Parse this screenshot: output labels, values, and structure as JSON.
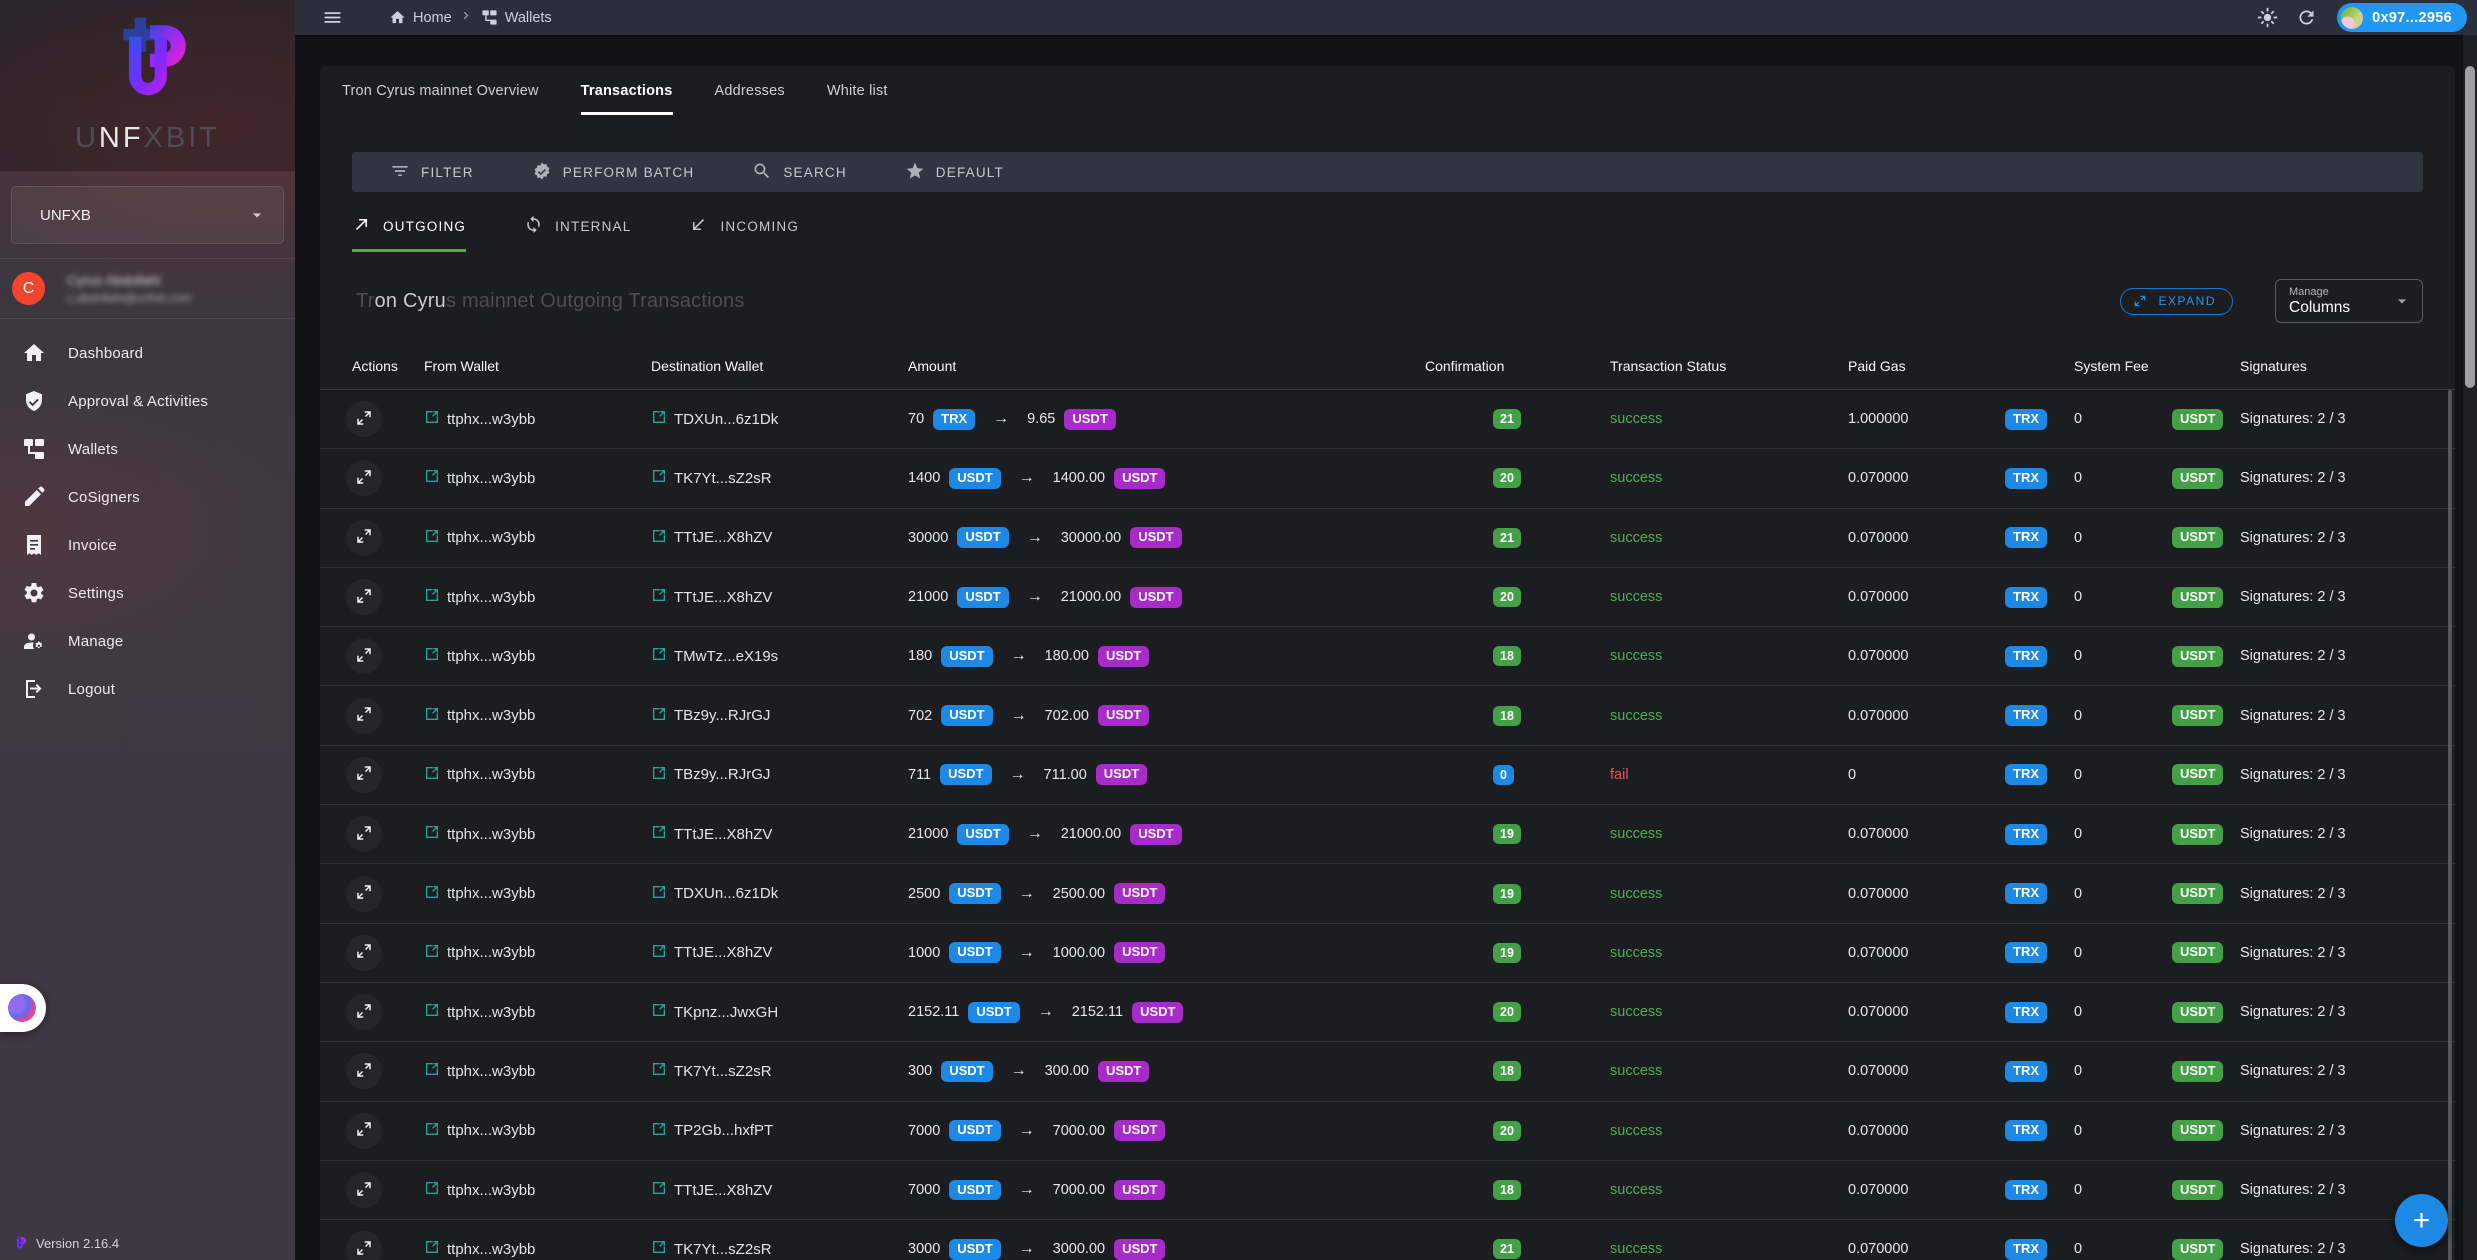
{
  "brand": {
    "logo_pre": "U",
    "logo_hl": "NF",
    "logo_post": "XBIT"
  },
  "sidebar": {
    "workspace": "UNFXB",
    "user": {
      "initial": "C",
      "name": "Cyrus Abdollahi",
      "email": "c.abdollahi@unfxb.com"
    },
    "items": [
      {
        "label": "Dashboard",
        "icon": "home"
      },
      {
        "label": "Approval & Activities",
        "icon": "approval"
      },
      {
        "label": "Wallets",
        "icon": "wallets"
      },
      {
        "label": "CoSigners",
        "icon": "cosigners"
      },
      {
        "label": "Invoice",
        "icon": "invoice"
      },
      {
        "label": "Settings",
        "icon": "settings"
      },
      {
        "label": "Manage",
        "icon": "manage"
      },
      {
        "label": "Logout",
        "icon": "logout"
      }
    ],
    "version": "Version 2.16.4"
  },
  "topbar": {
    "breadcrumb": {
      "home": "Home",
      "wallets": "Wallets"
    },
    "account": "0x97...2956"
  },
  "tabs": [
    {
      "label": "Tron Cyrus mainnet Overview",
      "active": false
    },
    {
      "label": "Transactions",
      "active": true
    },
    {
      "label": "Addresses",
      "active": false
    },
    {
      "label": "White list",
      "active": false
    }
  ],
  "toolbar": [
    {
      "label": "FILTER",
      "icon": "filter"
    },
    {
      "label": "PERFORM BATCH",
      "icon": "verified"
    },
    {
      "label": "SEARCH",
      "icon": "search"
    },
    {
      "label": "DEFAULT",
      "icon": "star"
    }
  ],
  "subtabs": [
    {
      "label": "OUTGOING",
      "icon": "outgoing",
      "active": true
    },
    {
      "label": "INTERNAL",
      "icon": "internal",
      "active": false
    },
    {
      "label": "INCOMING",
      "icon": "incoming",
      "active": false
    }
  ],
  "section": {
    "title_pre": "Tr",
    "title_hl": "on Cyru",
    "title_post": "s mainnet Outgoing Transactions",
    "expand_label": "EXPAND",
    "manage_label": "Manage",
    "manage_value": "Columns"
  },
  "colors": {
    "accent_blue": "#1e88e5",
    "chip_purple": "#a62bc8",
    "chip_green": "#43a047",
    "success": "#4caf50",
    "fail": "#ef5350",
    "wallet_icon_teal": "#26a69a",
    "subtab_underline": "#4caf50"
  },
  "table": {
    "headers": [
      "Actions",
      "From Wallet",
      "Destination Wallet",
      "Amount",
      "Confirmation",
      "Transaction Status",
      "Paid Gas",
      "System Fee",
      "Signatures"
    ],
    "gas_unit": "TRX",
    "fee_unit": "USDT",
    "rows": [
      {
        "from": "ttphx...w3ybb",
        "dest": "TDXUn...6z1Dk",
        "amount1": "70",
        "cur1": "TRX",
        "amount2": "9.65",
        "cur2": "USDT",
        "conf": "21",
        "conf_color": "green",
        "status": "success",
        "gas": "1.000000",
        "fee": "0",
        "signatures": "Signatures: 2 / 3"
      },
      {
        "from": "ttphx...w3ybb",
        "dest": "TK7Yt...sZ2sR",
        "amount1": "1400",
        "cur1": "USDT",
        "amount2": "1400.00",
        "cur2": "USDT",
        "conf": "20",
        "conf_color": "green",
        "status": "success",
        "gas": "0.070000",
        "fee": "0",
        "signatures": "Signatures: 2 / 3"
      },
      {
        "from": "ttphx...w3ybb",
        "dest": "TTtJE...X8hZV",
        "amount1": "30000",
        "cur1": "USDT",
        "amount2": "30000.00",
        "cur2": "USDT",
        "conf": "21",
        "conf_color": "green",
        "status": "success",
        "gas": "0.070000",
        "fee": "0",
        "signatures": "Signatures: 2 / 3"
      },
      {
        "from": "ttphx...w3ybb",
        "dest": "TTtJE...X8hZV",
        "amount1": "21000",
        "cur1": "USDT",
        "amount2": "21000.00",
        "cur2": "USDT",
        "conf": "20",
        "conf_color": "green",
        "status": "success",
        "gas": "0.070000",
        "fee": "0",
        "signatures": "Signatures: 2 / 3"
      },
      {
        "from": "ttphx...w3ybb",
        "dest": "TMwTz...eX19s",
        "amount1": "180",
        "cur1": "USDT",
        "amount2": "180.00",
        "cur2": "USDT",
        "conf": "18",
        "conf_color": "green",
        "status": "success",
        "gas": "0.070000",
        "fee": "0",
        "signatures": "Signatures: 2 / 3"
      },
      {
        "from": "ttphx...w3ybb",
        "dest": "TBz9y...RJrGJ",
        "amount1": "702",
        "cur1": "USDT",
        "amount2": "702.00",
        "cur2": "USDT",
        "conf": "18",
        "conf_color": "green",
        "status": "success",
        "gas": "0.070000",
        "fee": "0",
        "signatures": "Signatures: 2 / 3"
      },
      {
        "from": "ttphx...w3ybb",
        "dest": "TBz9y...RJrGJ",
        "amount1": "711",
        "cur1": "USDT",
        "amount2": "711.00",
        "cur2": "USDT",
        "conf": "0",
        "conf_color": "blue",
        "status": "fail",
        "gas": "0",
        "fee": "0",
        "signatures": "Signatures: 2 / 3"
      },
      {
        "from": "ttphx...w3ybb",
        "dest": "TTtJE...X8hZV",
        "amount1": "21000",
        "cur1": "USDT",
        "amount2": "21000.00",
        "cur2": "USDT",
        "conf": "19",
        "conf_color": "green",
        "status": "success",
        "gas": "0.070000",
        "fee": "0",
        "signatures": "Signatures: 2 / 3"
      },
      {
        "from": "ttphx...w3ybb",
        "dest": "TDXUn...6z1Dk",
        "amount1": "2500",
        "cur1": "USDT",
        "amount2": "2500.00",
        "cur2": "USDT",
        "conf": "19",
        "conf_color": "green",
        "status": "success",
        "gas": "0.070000",
        "fee": "0",
        "signatures": "Signatures: 2 / 3"
      },
      {
        "from": "ttphx...w3ybb",
        "dest": "TTtJE...X8hZV",
        "amount1": "1000",
        "cur1": "USDT",
        "amount2": "1000.00",
        "cur2": "USDT",
        "conf": "19",
        "conf_color": "green",
        "status": "success",
        "gas": "0.070000",
        "fee": "0",
        "signatures": "Signatures: 2 / 3"
      },
      {
        "from": "ttphx...w3ybb",
        "dest": "TKpnz...JwxGH",
        "amount1": "2152.11",
        "cur1": "USDT",
        "amount2": "2152.11",
        "cur2": "USDT",
        "conf": "20",
        "conf_color": "green",
        "status": "success",
        "gas": "0.070000",
        "fee": "0",
        "signatures": "Signatures: 2 / 3"
      },
      {
        "from": "ttphx...w3ybb",
        "dest": "TK7Yt...sZ2sR",
        "amount1": "300",
        "cur1": "USDT",
        "amount2": "300.00",
        "cur2": "USDT",
        "conf": "18",
        "conf_color": "green",
        "status": "success",
        "gas": "0.070000",
        "fee": "0",
        "signatures": "Signatures: 2 / 3"
      },
      {
        "from": "ttphx...w3ybb",
        "dest": "TP2Gb...hxfPT",
        "amount1": "7000",
        "cur1": "USDT",
        "amount2": "7000.00",
        "cur2": "USDT",
        "conf": "20",
        "conf_color": "green",
        "status": "success",
        "gas": "0.070000",
        "fee": "0",
        "signatures": "Signatures: 2 / 3"
      },
      {
        "from": "ttphx...w3ybb",
        "dest": "TTtJE...X8hZV",
        "amount1": "7000",
        "cur1": "USDT",
        "amount2": "7000.00",
        "cur2": "USDT",
        "conf": "18",
        "conf_color": "green",
        "status": "success",
        "gas": "0.070000",
        "fee": "0",
        "signatures": "Signatures: 2 / 3"
      },
      {
        "from": "ttphx...w3ybb",
        "dest": "TK7Yt...sZ2sR",
        "amount1": "3000",
        "cur1": "USDT",
        "amount2": "3000.00",
        "cur2": "USDT",
        "conf": "21",
        "conf_color": "green",
        "status": "success",
        "gas": "0.070000",
        "fee": "0",
        "signatures": "Signatures: 2 / 3"
      }
    ]
  },
  "fab_label": "+"
}
